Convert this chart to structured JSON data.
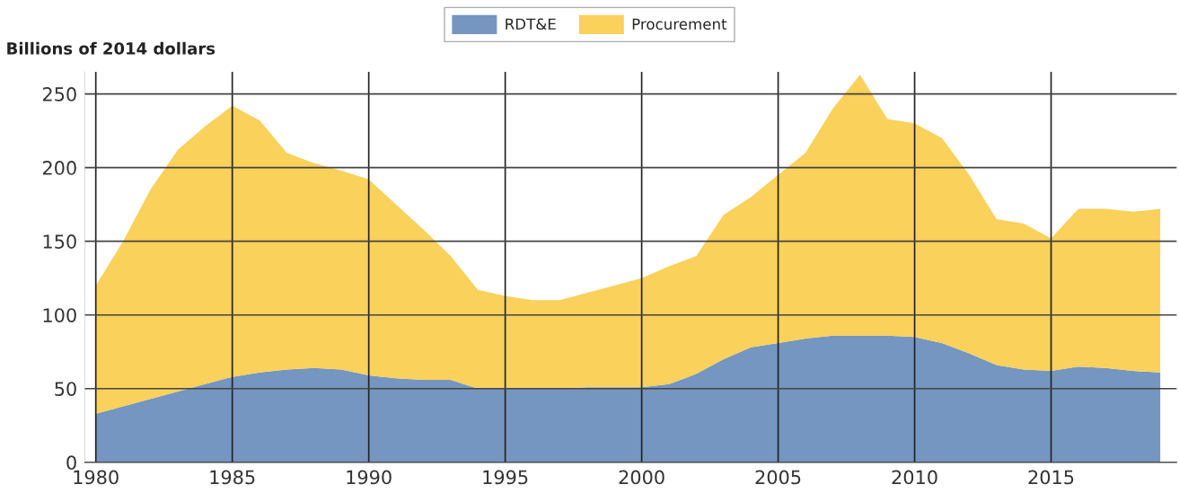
{
  "chart_data": {
    "type": "area",
    "stacked": true,
    "ylabel": "Billions of 2014 dollars",
    "x": [
      1980,
      1981,
      1982,
      1983,
      1984,
      1985,
      1986,
      1987,
      1988,
      1989,
      1990,
      1991,
      1992,
      1993,
      1994,
      1995,
      1996,
      1997,
      1998,
      1999,
      2000,
      2001,
      2002,
      2003,
      2004,
      2005,
      2006,
      2007,
      2008,
      2009,
      2010,
      2011,
      2012,
      2013,
      2014,
      2015,
      2016,
      2017,
      2018,
      2019
    ],
    "series": [
      {
        "name": "RDT&E",
        "color": "#7496c0",
        "values": [
          33,
          38,
          43,
          48,
          53,
          58,
          61,
          63,
          64,
          63,
          59,
          57,
          56,
          56,
          50,
          50,
          50,
          50,
          51,
          51,
          51,
          53,
          60,
          70,
          78,
          81,
          84,
          86,
          86,
          86,
          85,
          81,
          74,
          66,
          63,
          62,
          65,
          64,
          62,
          61
        ]
      },
      {
        "name": "Procurement",
        "color": "#f9d15b",
        "values": [
          87,
          112,
          142,
          164,
          175,
          184,
          171,
          147,
          139,
          135,
          133,
          118,
          102,
          84,
          67,
          63,
          60,
          60,
          64,
          69,
          74,
          80,
          80,
          98,
          102,
          114,
          126,
          154,
          177,
          147,
          145,
          139,
          121,
          99,
          99,
          90,
          107,
          108,
          108,
          111
        ]
      }
    ],
    "xlim": [
      1979.6,
      2019.6
    ],
    "ylim": [
      0,
      265
    ],
    "xticks": [
      1980,
      1985,
      1990,
      1995,
      2000,
      2005,
      2010,
      2015
    ],
    "yticks": [
      0,
      50,
      100,
      150,
      200,
      250
    ],
    "grid": true,
    "legend": "top"
  }
}
